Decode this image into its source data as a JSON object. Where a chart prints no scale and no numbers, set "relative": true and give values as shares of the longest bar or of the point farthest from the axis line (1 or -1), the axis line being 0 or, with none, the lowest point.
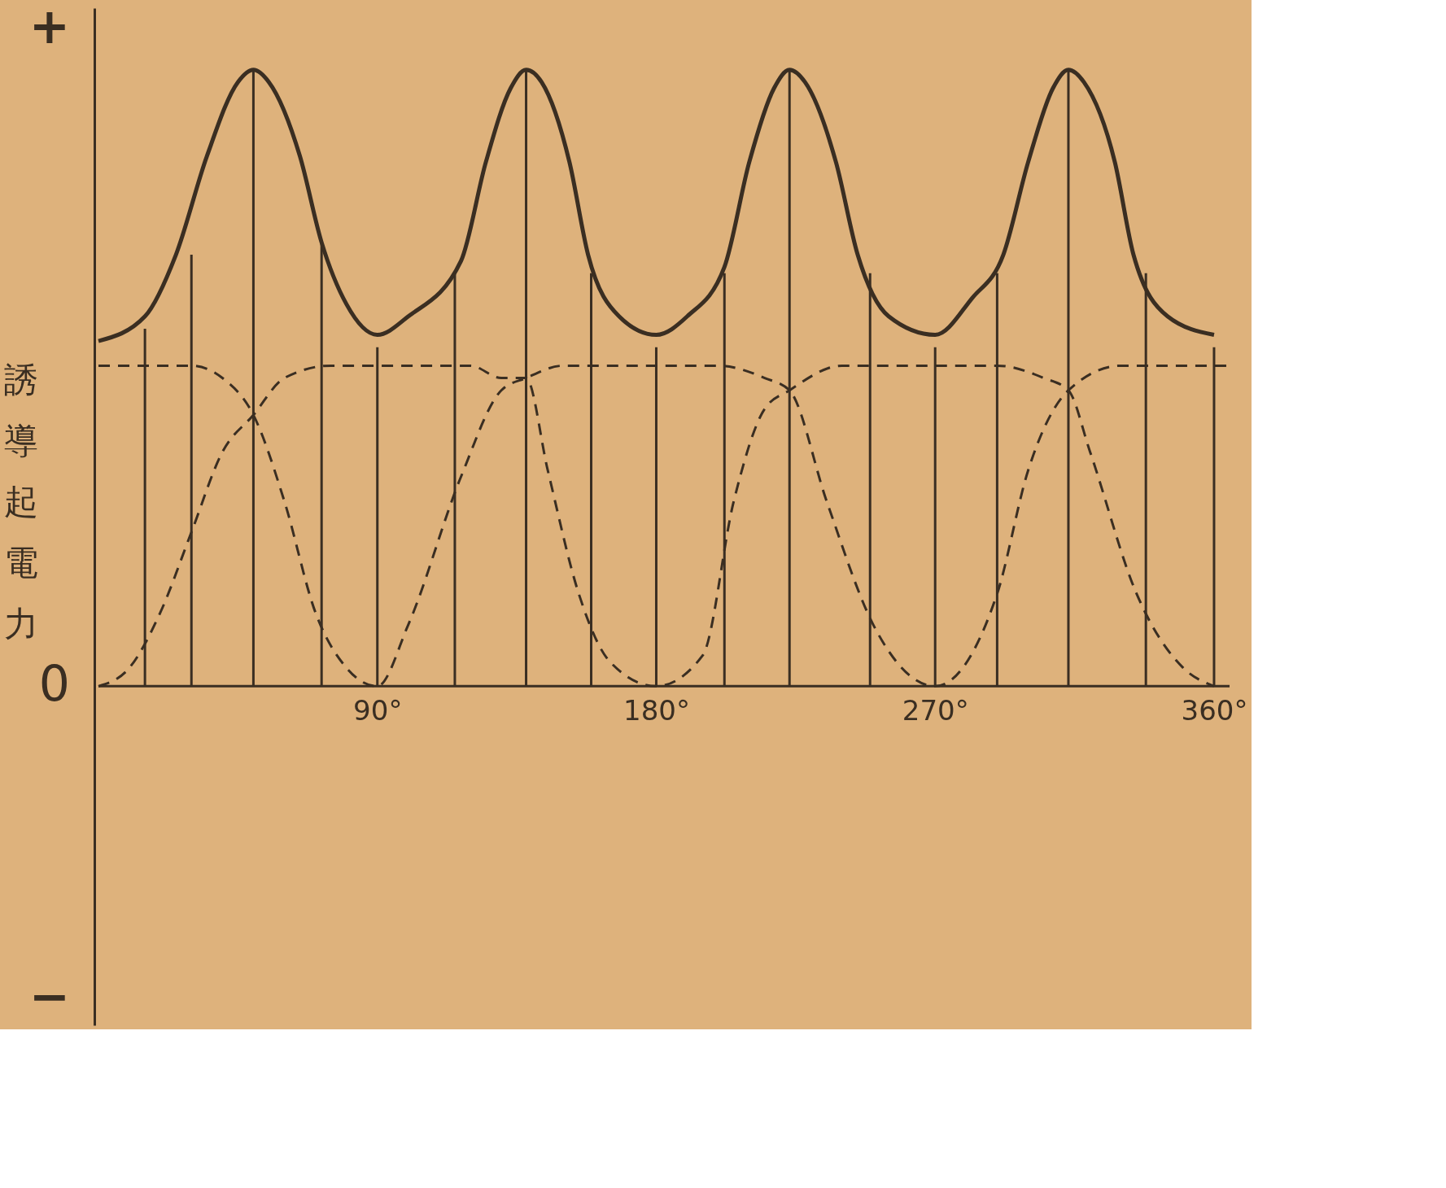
{
  "chart_data": {
    "type": "line",
    "relative": true,
    "ylabel": "誘導起電力",
    "annotations": [
      "+",
      "0",
      "−"
    ],
    "xlim": [
      0,
      365
    ],
    "xticks": [
      {
        "value": 90,
        "label": "90°"
      },
      {
        "value": 180,
        "label": "180°"
      },
      {
        "value": 270,
        "label": "270°"
      },
      {
        "value": 360,
        "label": "360°"
      }
    ],
    "grid": false,
    "series": [
      {
        "line_style": "solid",
        "color": "#3a2e22",
        "x": [
          0,
          15,
          25,
          35,
          45,
          50,
          55,
          65,
          72,
          80,
          90,
          100,
          117,
          125,
          133,
          138,
          143,
          152,
          158,
          168,
          180,
          190,
          202,
          210,
          218,
          223,
          228,
          238,
          245,
          255,
          270,
          282,
          292,
          300,
          308,
          313,
          318,
          328,
          334,
          345,
          360
        ],
        "values": [
          0.56,
          0.6,
          0.7,
          0.86,
          0.98,
          1.0,
          0.98,
          0.86,
          0.72,
          0.62,
          0.57,
          0.6,
          0.69,
          0.85,
          0.97,
          1.0,
          0.98,
          0.85,
          0.7,
          0.6,
          0.57,
          0.6,
          0.68,
          0.85,
          0.97,
          1.0,
          0.98,
          0.85,
          0.7,
          0.6,
          0.57,
          0.63,
          0.7,
          0.85,
          0.97,
          1.0,
          0.98,
          0.85,
          0.7,
          0.6,
          0.57
        ]
      },
      {
        "line_style": "dashed",
        "color": "#3a2e22",
        "x": [
          0,
          30,
          40,
          50,
          60,
          70,
          80,
          90,
          100,
          117,
          130,
          138,
          150,
          200,
          215,
          223,
          235,
          250,
          270,
          290,
          300,
          313,
          330,
          364
        ],
        "values": [
          0.52,
          0.52,
          0.5,
          0.44,
          0.3,
          0.12,
          0.03,
          0,
          0.1,
          0.34,
          0.48,
          0.5,
          0.52,
          0.52,
          0.5,
          0.48,
          0.3,
          0.1,
          0,
          0.15,
          0.35,
          0.48,
          0.52,
          0.52
        ]
      },
      {
        "line_style": "dashed",
        "color": "#3a2e22",
        "x": [
          0,
          10,
          20,
          30,
          40,
          50,
          60,
          75,
          120,
          130,
          138,
          145,
          155,
          165,
          180,
          195,
          205,
          215,
          223,
          240,
          290,
          305,
          313,
          320,
          335,
          350,
          360
        ],
        "values": [
          0,
          0.03,
          0.12,
          0.25,
          0.38,
          0.44,
          0.5,
          0.52,
          0.52,
          0.5,
          0.5,
          0.35,
          0.15,
          0.04,
          0,
          0.05,
          0.3,
          0.45,
          0.48,
          0.52,
          0.52,
          0.5,
          0.48,
          0.38,
          0.15,
          0.03,
          0
        ]
      },
      {
        "type": "bar",
        "color": "#3a2e22",
        "x": [
          15,
          30,
          50,
          72,
          90,
          115,
          138,
          159,
          180,
          202,
          223,
          249,
          270,
          290,
          313,
          338,
          360
        ],
        "values": [
          0.58,
          0.7,
          1.0,
          0.72,
          0.55,
          0.67,
          1.0,
          0.67,
          0.55,
          0.67,
          1.0,
          0.67,
          0.55,
          0.67,
          1.0,
          0.67,
          0.55
        ]
      }
    ]
  }
}
